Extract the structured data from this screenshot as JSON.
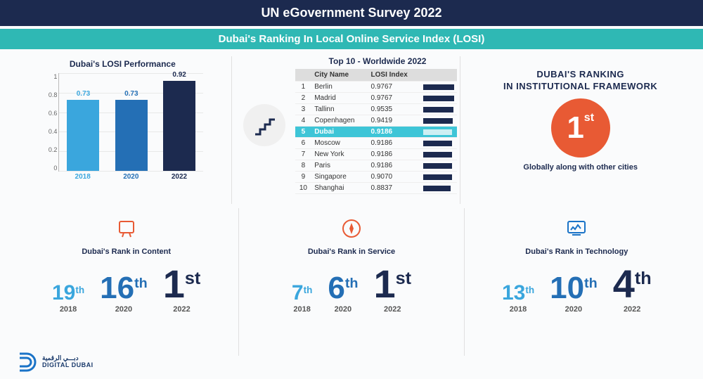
{
  "header": {
    "title": "UN eGovernment Survey 2022",
    "subtitle": "Dubai's Ranking In Local Online Service Index (LOSI)"
  },
  "colors": {
    "navy": "#1c2a4f",
    "teal": "#2fb8b4",
    "orange": "#e85a34",
    "lightblue": "#3aa6dd",
    "midblue": "#246fb5",
    "cyan": "#3ec5d7"
  },
  "bar_chart": {
    "title": "Dubai's LOSI Performance",
    "ylim": [
      0,
      1
    ],
    "ytick_step": 0.2,
    "yticks": [
      "1",
      "0.8",
      "0.6",
      "0.4",
      "0.2",
      "0"
    ],
    "bars": [
      {
        "year": "2018",
        "value": 0.73,
        "label": "0.73",
        "color": "#3aa6dd",
        "label_color": "#3aa6dd"
      },
      {
        "year": "2020",
        "value": 0.73,
        "label": "0.73",
        "color": "#246fb5",
        "label_color": "#246fb5"
      },
      {
        "year": "2022",
        "value": 0.92,
        "label": "0.92",
        "color": "#1c2a4f",
        "label_color": "#1c2a4f"
      }
    ],
    "grid_color": "#e8e8e8",
    "background_color": "#fafbfc"
  },
  "top10_table": {
    "title": "Top 10 - Worldwide 2022",
    "columns": [
      "",
      "City Name",
      "LOSI Index",
      ""
    ],
    "highlight_rank": 5,
    "rows": [
      {
        "rank": 1,
        "city": "Berlin",
        "index": "0.9767",
        "bar": 1.0
      },
      {
        "rank": 2,
        "city": "Madrid",
        "index": "0.9767",
        "bar": 1.0
      },
      {
        "rank": 3,
        "city": "Tallinn",
        "index": "0.9535",
        "bar": 0.976
      },
      {
        "rank": 4,
        "city": "Copenhagen",
        "index": "0.9419",
        "bar": 0.964
      },
      {
        "rank": 5,
        "city": "Dubai",
        "index": "0.9186",
        "bar": 0.941
      },
      {
        "rank": 6,
        "city": "Moscow",
        "index": "0.9186",
        "bar": 0.941
      },
      {
        "rank": 7,
        "city": "New York",
        "index": "0.9186",
        "bar": 0.941
      },
      {
        "rank": 8,
        "city": "Paris",
        "index": "0.9186",
        "bar": 0.941
      },
      {
        "rank": 9,
        "city": "Singapore",
        "index": "0.9070",
        "bar": 0.929
      },
      {
        "rank": 10,
        "city": "Shanghai",
        "index": "0.8837",
        "bar": 0.905
      }
    ]
  },
  "institutional": {
    "title_l1": "DUBAI'S RANKING",
    "title_l2": "IN INSTITUTIONAL FRAMEWORK",
    "rank_num": "1",
    "rank_suffix": "st",
    "subtitle": "Globally along with other cities"
  },
  "progressions": [
    {
      "icon": "content",
      "title": "Dubai's Rank in Content",
      "items": [
        {
          "num": "19",
          "suffix": "th",
          "year": "2018",
          "size": 30,
          "color": "#3aa6dd"
        },
        {
          "num": "16",
          "suffix": "th",
          "year": "2020",
          "size": 44,
          "color": "#246fb5"
        },
        {
          "num": "1",
          "suffix": "st",
          "year": "2022",
          "size": 56,
          "color": "#1c2a4f"
        }
      ]
    },
    {
      "icon": "service",
      "title": "Dubai's Rank in Service",
      "items": [
        {
          "num": "7",
          "suffix": "th",
          "year": "2018",
          "size": 30,
          "color": "#3aa6dd"
        },
        {
          "num": "6",
          "suffix": "th",
          "year": "2020",
          "size": 44,
          "color": "#246fb5"
        },
        {
          "num": "1",
          "suffix": "st",
          "year": "2022",
          "size": 56,
          "color": "#1c2a4f"
        }
      ]
    },
    {
      "icon": "technology",
      "title": "Dubai's Rank in Technology",
      "items": [
        {
          "num": "13",
          "suffix": "th",
          "year": "2018",
          "size": 30,
          "color": "#3aa6dd"
        },
        {
          "num": "10",
          "suffix": "th",
          "year": "2020",
          "size": 44,
          "color": "#246fb5"
        },
        {
          "num": "4",
          "suffix": "th",
          "year": "2022",
          "size": 56,
          "color": "#1c2a4f"
        }
      ]
    }
  ],
  "footer": {
    "brand_ar": "دبـــي الرقمية",
    "brand_en": "DIGITAL DUBAI"
  }
}
